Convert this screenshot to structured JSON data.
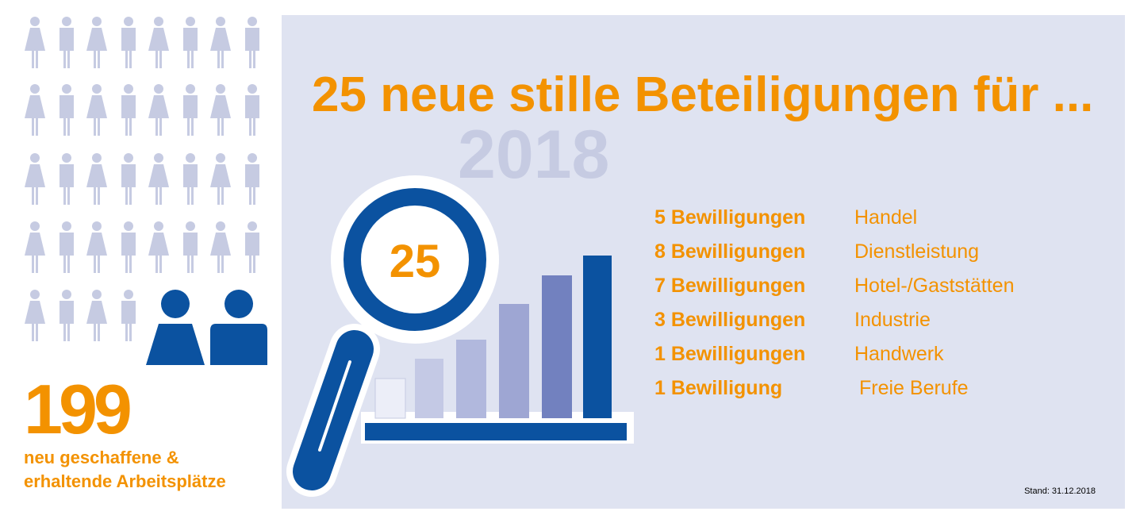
{
  "summary": {
    "jobs_count": "199",
    "jobs_caption_line1": "neu geschaffene &",
    "jobs_caption_line2": "erhaltende Arbeitsplätze"
  },
  "headline": "25 neue stille Beteiligungen für ...",
  "year": "2018",
  "magnifier_value": "25",
  "approvals": [
    {
      "count": "5 Bewilligungen",
      "sector": "Handel"
    },
    {
      "count": "8 Bewilligungen",
      "sector": "Dienstleistung"
    },
    {
      "count": "7 Bewilligungen",
      "sector": "Hotel-/Gaststätten"
    },
    {
      "count": "3 Bewilligungen",
      "sector": "Industrie"
    },
    {
      "count": "1 Bewilligungen",
      "sector": "Handwerk"
    },
    {
      "count": "1 Bewilligung",
      "sector": "Freie Berufe"
    }
  ],
  "stand": "Stand: 31.12.2018",
  "icons": {
    "people": "person-icon",
    "magnifier": "magnifying-glass-icon",
    "bars": "bar-chart-icon"
  },
  "colors": {
    "accent": "#f39200",
    "dark_blue": "#0b52a0",
    "light_figure": "#c6cbe2",
    "panel_bg": "#dfe3f1"
  }
}
